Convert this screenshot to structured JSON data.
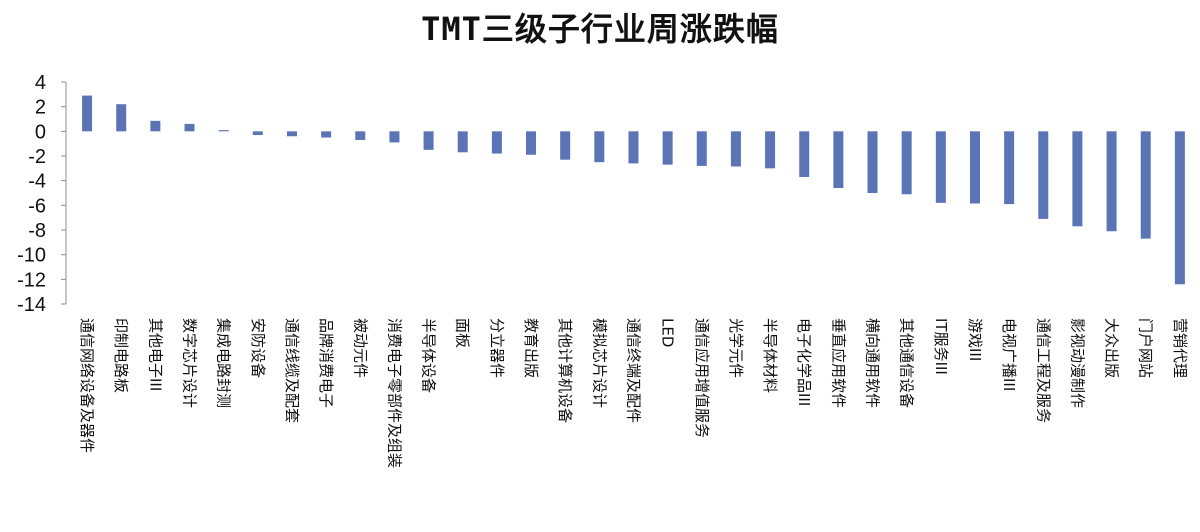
{
  "chart_data": {
    "type": "bar",
    "title": "TMT三级子行业周涨跌幅",
    "xlabel": "",
    "ylabel": "",
    "ylim": [
      -14,
      4
    ],
    "yticks": [
      4,
      2,
      0,
      -2,
      -4,
      -6,
      -8,
      -10,
      -12,
      -14
    ],
    "grid": false,
    "legend": "none",
    "bar_color": "#5B74B6",
    "categories": [
      "通信网络设备及器件",
      "印制电路板",
      "其他电子III",
      "数字芯片设计",
      "集成电路封测",
      "安防设备",
      "通信线缆及配套",
      "品牌消费电子",
      "被动元件",
      "消费电子零部件及组装",
      "半导体设备",
      "面板",
      "分立器件",
      "教育出版",
      "其他计算机设备",
      "模拟芯片设计",
      "通信终端及配件",
      "LED",
      "通信应用增值服务",
      "光学元件",
      "半导体材料",
      "电子化学品III",
      "垂直应用软件",
      "横向通用软件",
      "其他通信设备",
      "IT服务III",
      "游戏III",
      "电视广播III",
      "通信工程及服务",
      "影视动漫制作",
      "大众出版",
      "门户网站",
      "营销代理"
    ],
    "values": [
      2.9,
      2.2,
      0.85,
      0.6,
      0.1,
      -0.3,
      -0.4,
      -0.5,
      -0.7,
      -0.9,
      -1.5,
      -1.7,
      -1.8,
      -1.9,
      -2.3,
      -2.5,
      -2.6,
      -2.7,
      -2.8,
      -2.85,
      -3.0,
      -3.7,
      -4.6,
      -5.0,
      -5.1,
      -5.8,
      -5.85,
      -5.9,
      -7.1,
      -7.7,
      -8.1,
      -8.7,
      -12.4
    ]
  }
}
